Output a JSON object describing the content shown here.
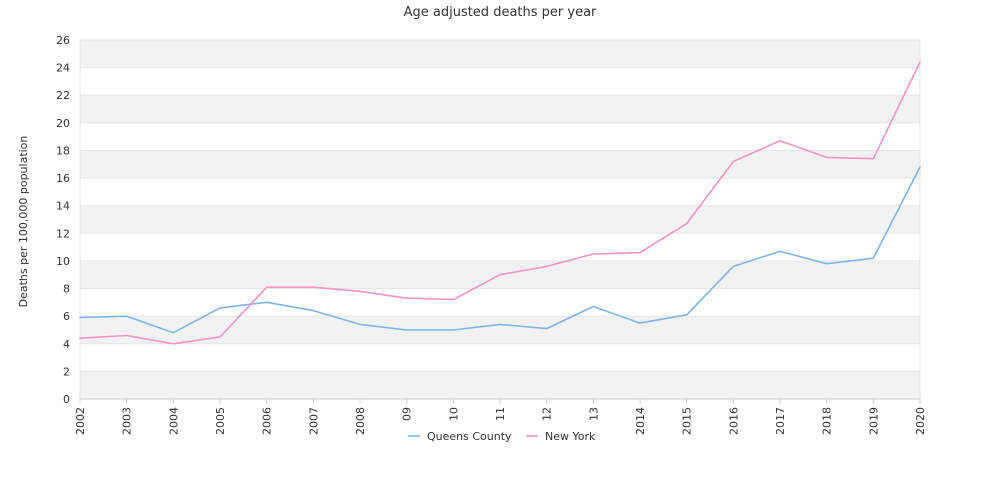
{
  "chart_data": {
    "type": "line",
    "title": "Age adjusted deaths per year",
    "xlabel": "",
    "ylabel": "Deaths per 100,000 population",
    "categories": [
      "2002",
      "2003",
      "2004",
      "2005",
      "2006",
      "2007",
      "2008",
      "09",
      "10",
      "11",
      "12",
      "13",
      "2014",
      "2015",
      "2016",
      "2017",
      "2018",
      "2019",
      "2020"
    ],
    "ylim": [
      0,
      26
    ],
    "yticks": [
      0,
      2,
      4,
      6,
      8,
      10,
      12,
      14,
      16,
      18,
      20,
      22,
      24,
      26
    ],
    "grid": "horizontal alternating bands",
    "legend_position": "bottom-center",
    "series": [
      {
        "name": "Queens County",
        "color": "#7cb5ec",
        "values": [
          5.9,
          6.0,
          4.8,
          6.6,
          7.0,
          6.4,
          5.4,
          5.0,
          5.0,
          5.4,
          5.1,
          6.7,
          5.5,
          6.1,
          9.6,
          10.7,
          9.8,
          10.2,
          16.8
        ]
      },
      {
        "name": "New York",
        "color": "#f394c4",
        "values": [
          4.4,
          4.6,
          4.0,
          4.5,
          8.1,
          8.1,
          7.8,
          7.3,
          7.2,
          9.0,
          9.6,
          10.5,
          10.6,
          12.7,
          17.2,
          18.7,
          17.5,
          17.4,
          24.4
        ]
      }
    ]
  }
}
